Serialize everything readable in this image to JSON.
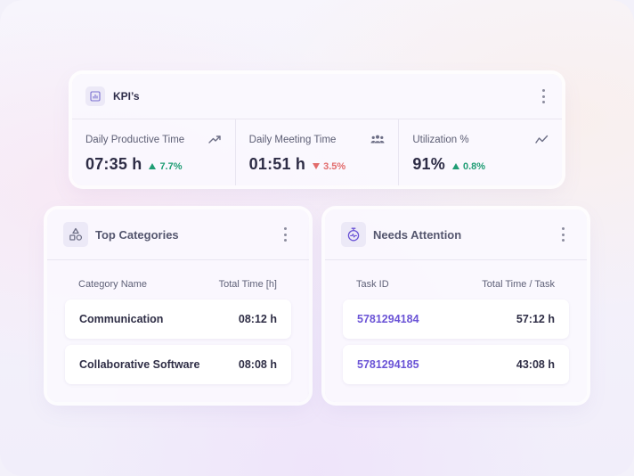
{
  "kpis": {
    "title": "KPI’s",
    "items": [
      {
        "label": "Daily Productive Time",
        "value": "07:35 h",
        "delta": "7.7%",
        "direction": "up",
        "icon": "trending-up-icon"
      },
      {
        "label": "Daily Meeting Time",
        "value": "01:51 h",
        "delta": "3.5%",
        "direction": "down",
        "icon": "people-icon"
      },
      {
        "label": "Utilization %",
        "value": "91%",
        "delta": "0.8%",
        "direction": "up",
        "icon": "line-chart-icon"
      }
    ]
  },
  "top_categories": {
    "title": "Top Categories",
    "columns": [
      "Category Name",
      "Total Time [h]"
    ],
    "rows": [
      {
        "name": "Communication",
        "time": "08:12 h"
      },
      {
        "name": "Collaborative Software",
        "time": "08:08 h"
      }
    ]
  },
  "needs_attention": {
    "title": "Needs Attention",
    "columns": [
      "Task ID",
      "Total Time / Task"
    ],
    "rows": [
      {
        "id": "5781294184",
        "time": "57:12 h"
      },
      {
        "id": "5781294185",
        "time": "43:08 h"
      }
    ]
  },
  "colors": {
    "accent": "#6b54d6",
    "positive": "#1f9d74",
    "negative": "#e26c6c",
    "text": "#2d2c45"
  }
}
